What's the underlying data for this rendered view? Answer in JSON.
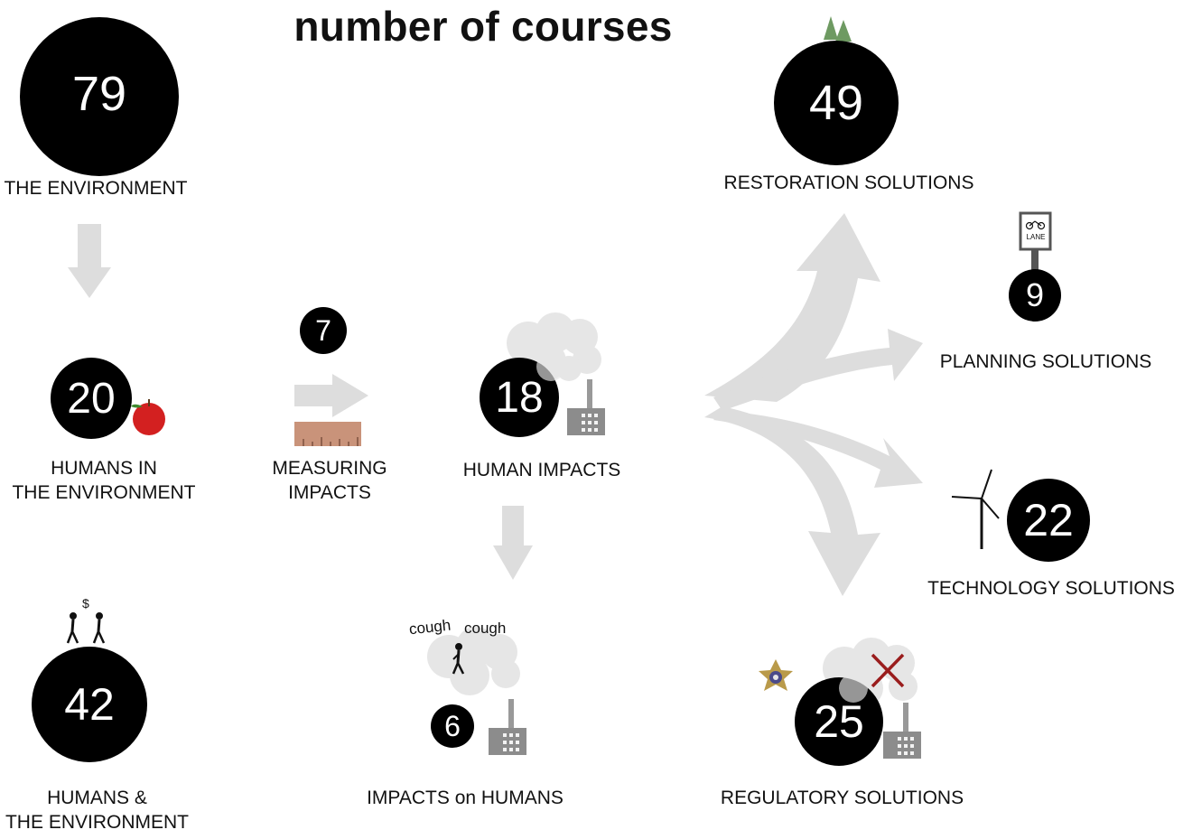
{
  "title": "number of courses",
  "nodes": {
    "environment": {
      "count": "79",
      "label": "THE ENVIRONMENT"
    },
    "humans_in": {
      "count": "20",
      "label_line1": "HUMANS IN",
      "label_line2": "THE ENVIRONMENT"
    },
    "humans_and": {
      "count": "42",
      "label_line1": "HUMANS &",
      "label_line2": "THE ENVIRONMENT"
    },
    "measuring": {
      "count": "7",
      "label_line1": "MEASURING",
      "label_line2": "IMPACTS"
    },
    "human_impacts": {
      "count": "18",
      "label": "HUMAN IMPACTS"
    },
    "impacts_on": {
      "count": "6",
      "label": "IMPACTS on HUMANS"
    },
    "restoration": {
      "count": "49",
      "label": "RESTORATION SOLUTIONS"
    },
    "planning": {
      "count": "9",
      "label": "PLANNING SOLUTIONS"
    },
    "technology": {
      "count": "22",
      "label": "TECHNOLOGY SOLUTIONS"
    },
    "regulatory": {
      "count": "25",
      "label": "REGULATORY SOLUTIONS"
    }
  },
  "decor": {
    "cough_1": "cough",
    "cough_2": "cough",
    "dollar": "$",
    "lane_sign": "LANE"
  },
  "colors": {
    "circle": "#000000",
    "arrow": "#dddddd",
    "cloud": "#e6e6e6",
    "apple": "#d32020",
    "ruler": "#c9937a",
    "cross": "#9a1d1d",
    "tree": "#6e9a62"
  },
  "icons": [
    "earth-icon",
    "apple-icon",
    "ruler-icon",
    "factory-icon",
    "smoke-cloud-icon",
    "people-icon",
    "tree-icon",
    "bike-lane-sign-icon",
    "wind-turbine-icon",
    "sheriff-badge-icon",
    "cross-icon"
  ]
}
